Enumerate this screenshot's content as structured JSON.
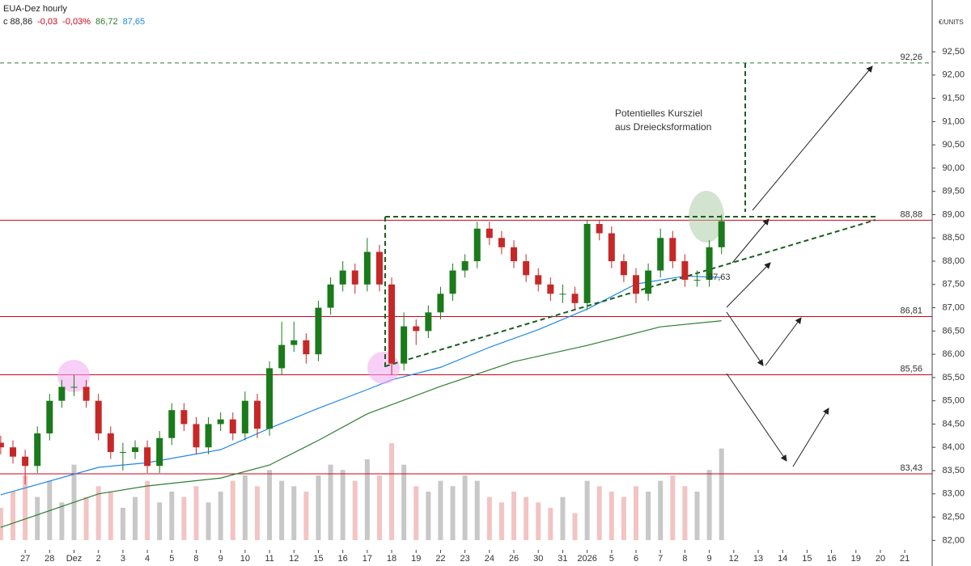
{
  "chart_data": {
    "type": "candlestick",
    "title": "EUA-Dez hourly",
    "header": [
      {
        "text": "c 88,86",
        "color": "#222222"
      },
      {
        "text": "-0,03",
        "color": "#d0021b"
      },
      {
        "text": "-0,03%",
        "color": "#d0021b"
      },
      {
        "text": "86,72",
        "color": "#2e7d32"
      },
      {
        "text": "87,65",
        "color": "#1e88e5"
      }
    ],
    "y_unit": "€/UNITS",
    "ylim": [
      81.45,
      93.3
    ],
    "yticks": [
      {
        "value": 82,
        "label": "82,00"
      },
      {
        "value": 82.5,
        "label": "82,50"
      },
      {
        "value": 83,
        "label": "83,00"
      },
      {
        "value": 83.5,
        "label": "83,50"
      },
      {
        "value": 84,
        "label": "84,00"
      },
      {
        "value": 84.5,
        "label": "84,50"
      },
      {
        "value": 85,
        "label": "85,00"
      },
      {
        "value": 85.5,
        "label": "85,50"
      },
      {
        "value": 86,
        "label": "86,00"
      },
      {
        "value": 86.5,
        "label": "86,50"
      },
      {
        "value": 87,
        "label": "87,00"
      },
      {
        "value": 87.5,
        "label": "87,50"
      },
      {
        "value": 88,
        "label": "88,00"
      },
      {
        "value": 88.5,
        "label": "88,50"
      },
      {
        "value": 89,
        "label": "89,00"
      },
      {
        "value": 89.5,
        "label": "89,50"
      },
      {
        "value": 90,
        "label": "90,00"
      },
      {
        "value": 90.5,
        "label": "90,50"
      },
      {
        "value": 91,
        "label": "91,00"
      },
      {
        "value": 91.5,
        "label": "91,50"
      },
      {
        "value": 92,
        "label": "92,00"
      },
      {
        "value": 92.5,
        "label": "92,50"
      }
    ],
    "xlim": [
      -1.03,
      37.12
    ],
    "xticks": [
      {
        "value": 0,
        "label": "27"
      },
      {
        "value": 1,
        "label": "28"
      },
      {
        "value": 2,
        "label": "Dez"
      },
      {
        "value": 3,
        "label": "2"
      },
      {
        "value": 4,
        "label": "3"
      },
      {
        "value": 5,
        "label": "4"
      },
      {
        "value": 6,
        "label": "5"
      },
      {
        "value": 7,
        "label": "8"
      },
      {
        "value": 8,
        "label": "9"
      },
      {
        "value": 9,
        "label": "10"
      },
      {
        "value": 10,
        "label": "11"
      },
      {
        "value": 11,
        "label": "12"
      },
      {
        "value": 12,
        "label": "15"
      },
      {
        "value": 13,
        "label": "16"
      },
      {
        "value": 14,
        "label": "17"
      },
      {
        "value": 15,
        "label": "18"
      },
      {
        "value": 16,
        "label": "19"
      },
      {
        "value": 17,
        "label": "22"
      },
      {
        "value": 18,
        "label": "23"
      },
      {
        "value": 19,
        "label": "24"
      },
      {
        "value": 20,
        "label": "26"
      },
      {
        "value": 21,
        "label": "30"
      },
      {
        "value": 22,
        "label": "31"
      },
      {
        "value": 23,
        "label": "2026"
      },
      {
        "value": 24,
        "label": "5"
      },
      {
        "value": 25,
        "label": "6"
      },
      {
        "value": 26,
        "label": "7"
      },
      {
        "value": 27,
        "label": "8"
      },
      {
        "value": 28,
        "label": "9"
      },
      {
        "value": 29,
        "label": "12"
      },
      {
        "value": 30,
        "label": "13"
      },
      {
        "value": 31,
        "label": "14"
      },
      {
        "value": 32,
        "label": "15"
      },
      {
        "value": 33,
        "label": "16"
      },
      {
        "value": 34,
        "label": "19"
      },
      {
        "value": 35,
        "label": "20"
      },
      {
        "value": 36,
        "label": "21"
      }
    ],
    "up_color": "#1b7a1b",
    "down_color": "#c62828",
    "x": [
      -1,
      -0.5,
      0,
      0.5,
      1,
      1.5,
      2,
      2.5,
      3,
      3.5,
      4,
      4.5,
      5,
      5.5,
      6,
      6.5,
      7,
      7.5,
      8,
      8.5,
      9,
      9.5,
      10,
      10.5,
      11,
      11.5,
      12,
      12.5,
      13,
      13.5,
      14,
      14.5,
      15,
      15.5,
      16,
      16.5,
      17,
      17.5,
      18,
      18.5,
      19,
      19.5,
      20,
      20.5,
      21,
      21.5,
      22,
      22.5,
      23,
      23.5,
      24,
      24.5,
      25,
      25.5,
      26,
      26.5,
      27,
      27.5,
      28,
      28.5
    ],
    "open": [
      84.1,
      84.0,
      83.8,
      83.6,
      84.3,
      85.0,
      85.3,
      85.3,
      85.0,
      84.3,
      83.9,
      83.9,
      84.0,
      83.6,
      84.2,
      84.8,
      84.5,
      84.0,
      84.5,
      84.6,
      84.3,
      85.0,
      84.4,
      85.7,
      86.2,
      86.3,
      86.0,
      87.0,
      87.5,
      87.8,
      87.5,
      88.2,
      87.5,
      85.8,
      86.6,
      86.5,
      86.9,
      87.3,
      87.8,
      88.0,
      88.7,
      88.5,
      88.3,
      88.0,
      87.7,
      87.5,
      87.3,
      87.3,
      87.1,
      88.8,
      88.6,
      88.0,
      87.7,
      87.3,
      87.8,
      88.5,
      88.0,
      87.6,
      87.6,
      88.3
    ],
    "high": [
      84.25,
      84.15,
      83.95,
      84.45,
      85.15,
      85.45,
      85.55,
      85.45,
      85.15,
      84.45,
      84.1,
      84.15,
      84.15,
      84.35,
      84.95,
      84.95,
      84.65,
      84.65,
      84.75,
      84.75,
      85.2,
      85.15,
      85.85,
      86.7,
      86.7,
      86.45,
      87.15,
      87.65,
      88.0,
      87.95,
      88.5,
      88.35,
      87.65,
      86.9,
      86.75,
      87.05,
      87.45,
      87.95,
      88.15,
      88.85,
      88.85,
      88.65,
      88.45,
      88.15,
      87.85,
      87.65,
      87.5,
      87.45,
      88.88,
      88.88,
      88.75,
      88.15,
      87.85,
      87.95,
      88.7,
      88.65,
      88.15,
      87.8,
      88.45,
      89.0
    ],
    "low": [
      83.85,
      83.65,
      83.2,
      83.45,
      84.15,
      84.85,
      85.1,
      84.85,
      84.15,
      83.75,
      83.5,
      83.75,
      83.45,
      83.45,
      84.05,
      84.35,
      83.85,
      83.85,
      84.35,
      84.15,
      84.15,
      84.2,
      84.25,
      85.55,
      86.05,
      85.8,
      85.85,
      86.85,
      87.35,
      87.3,
      87.35,
      87.35,
      85.56,
      85.65,
      86.2,
      86.35,
      86.75,
      87.15,
      87.65,
      87.85,
      88.35,
      88.15,
      87.85,
      87.55,
      87.35,
      87.15,
      87.1,
      86.95,
      86.95,
      88.45,
      87.85,
      87.55,
      87.1,
      87.15,
      87.65,
      87.85,
      87.45,
      87.45,
      87.45,
      88.15
    ],
    "close": [
      84.0,
      83.8,
      83.6,
      84.3,
      85.0,
      85.3,
      85.3,
      85.0,
      84.3,
      83.9,
      83.9,
      84.0,
      83.6,
      84.2,
      84.8,
      84.5,
      84.0,
      84.5,
      84.6,
      84.3,
      85.0,
      84.4,
      85.7,
      86.2,
      86.3,
      86.0,
      87.0,
      87.5,
      87.8,
      87.5,
      88.2,
      87.5,
      85.8,
      86.6,
      86.5,
      86.9,
      87.3,
      87.8,
      88.0,
      88.7,
      88.5,
      88.3,
      88.0,
      87.7,
      87.5,
      87.3,
      87.3,
      87.1,
      88.8,
      88.6,
      88.0,
      87.7,
      87.3,
      87.8,
      88.5,
      88.0,
      87.6,
      87.6,
      88.3,
      88.86
    ],
    "volume": [
      30,
      45,
      60,
      40,
      55,
      35,
      70,
      40,
      50,
      45,
      30,
      40,
      55,
      35,
      45,
      40,
      50,
      35,
      45,
      55,
      60,
      50,
      65,
      55,
      50,
      45,
      60,
      70,
      65,
      55,
      75,
      60,
      90,
      70,
      50,
      45,
      55,
      50,
      60,
      55,
      40,
      35,
      45,
      40,
      35,
      30,
      40,
      25,
      55,
      50,
      45,
      40,
      50,
      45,
      55,
      60,
      50,
      45,
      65,
      85
    ],
    "series": [
      {
        "color": "#1e88e5",
        "x": [
          -1,
          3,
          5,
          8,
          10,
          12,
          14,
          15,
          17,
          19,
          21,
          23,
          25,
          27,
          28.5
        ],
        "values": [
          82.98,
          83.57,
          83.67,
          83.95,
          84.41,
          84.84,
          85.24,
          85.45,
          85.72,
          86.15,
          86.53,
          86.97,
          87.51,
          87.68,
          87.65
        ]
      },
      {
        "color": "#2e7d32",
        "x": [
          -1,
          3,
          5,
          8,
          10,
          12,
          14,
          17,
          20,
          23,
          26,
          28.5
        ],
        "values": [
          82.28,
          83.0,
          83.17,
          83.34,
          83.62,
          84.15,
          84.72,
          85.31,
          85.84,
          86.19,
          86.59,
          86.72
        ]
      }
    ],
    "levels": [
      {
        "value": 92.26,
        "label": "92,26",
        "color": "#2e7d32",
        "dashed": true
      },
      {
        "value": 88.88,
        "label": "88,88",
        "color": "#d0021b",
        "dashed": false
      },
      {
        "value": 86.81,
        "label": "86,81",
        "color": "#d0021b",
        "dashed": false
      },
      {
        "value": 85.56,
        "label": "85,56",
        "color": "#d0021b",
        "dashed": false
      },
      {
        "value": 83.43,
        "label": "83,43",
        "color": "#d0021b",
        "dashed": false
      }
    ],
    "annotations": [
      "Potentielles Kursziel",
      "aus Dreiecksformation",
      "87,63"
    ]
  }
}
